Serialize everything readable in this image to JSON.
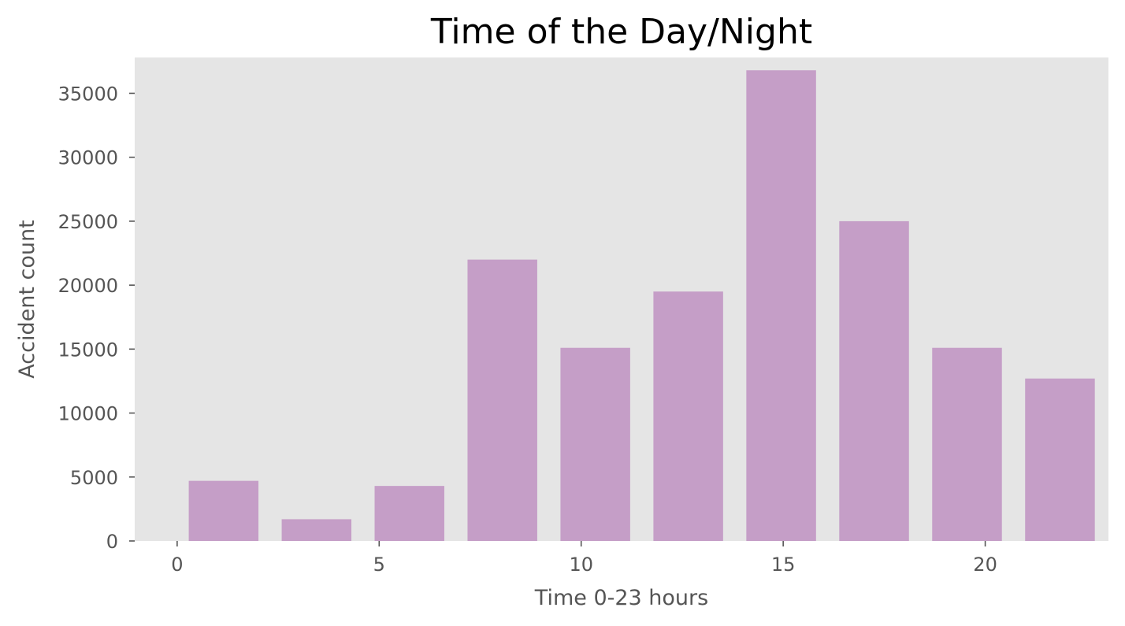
{
  "chart_data": {
    "type": "bar",
    "title": "Time of the Day/Night",
    "xlabel": "Time 0-23 hours",
    "ylabel": "Accident count",
    "xlim": [
      -1.05,
      23.05
    ],
    "ylim": [
      0,
      37800
    ],
    "xticks": [
      0,
      5,
      10,
      15,
      20
    ],
    "yticks": [
      0,
      5000,
      10000,
      15000,
      20000,
      25000,
      30000,
      35000
    ],
    "bar_width": 2.3,
    "bars": [
      {
        "x_start": 0.0,
        "x_end": 2.3,
        "value": 4700
      },
      {
        "x_start": 2.3,
        "x_end": 4.6,
        "value": 1700
      },
      {
        "x_start": 4.6,
        "x_end": 6.9,
        "value": 4300
      },
      {
        "x_start": 6.9,
        "x_end": 9.2,
        "value": 22000
      },
      {
        "x_start": 9.2,
        "x_end": 11.5,
        "value": 15100
      },
      {
        "x_start": 11.5,
        "x_end": 13.8,
        "value": 19500
      },
      {
        "x_start": 13.8,
        "x_end": 16.1,
        "value": 36800
      },
      {
        "x_start": 16.1,
        "x_end": 18.4,
        "value": 25000
      },
      {
        "x_start": 18.4,
        "x_end": 20.7,
        "value": 15100
      },
      {
        "x_start": 20.7,
        "x_end": 23.0,
        "value": 12700
      }
    ],
    "grid": false,
    "background_color": "#e5e5e5",
    "bar_color": "#c59ec7"
  }
}
